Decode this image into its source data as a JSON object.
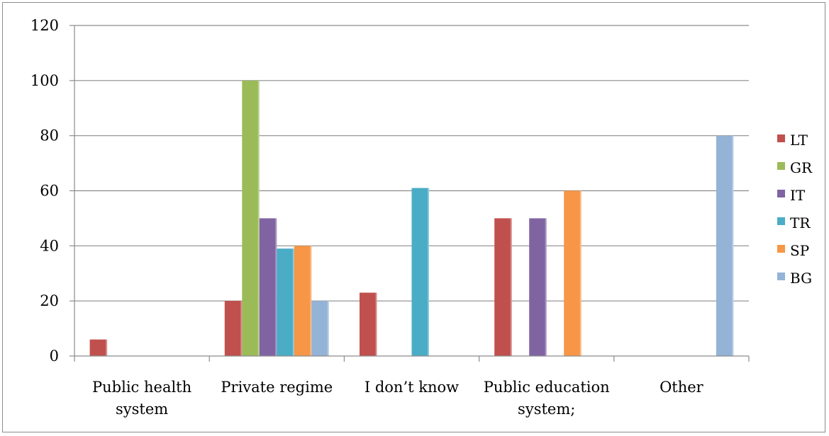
{
  "chart_data": {
    "type": "bar",
    "categories": [
      [
        "Public health",
        "system"
      ],
      [
        "Private regime"
      ],
      [
        "I don’t know"
      ],
      [
        "Public education",
        "system;"
      ],
      [
        "Other"
      ]
    ],
    "series": [
      {
        "name": "LT",
        "color": "#c0504d",
        "values": [
          6,
          20,
          23,
          50,
          0
        ]
      },
      {
        "name": "GR",
        "color": "#9bbb59",
        "values": [
          0,
          100,
          0,
          0,
          0
        ]
      },
      {
        "name": "IT",
        "color": "#8064a2",
        "values": [
          0,
          50,
          0,
          50,
          0
        ]
      },
      {
        "name": "TR",
        "color": "#4bacc6",
        "values": [
          0,
          39,
          61,
          0,
          0
        ]
      },
      {
        "name": "SP",
        "color": "#f79646",
        "values": [
          0,
          40,
          0,
          60,
          0
        ]
      },
      {
        "name": "BG",
        "color": "#95b3d7",
        "values": [
          0,
          20,
          0,
          0,
          80
        ]
      }
    ],
    "ylim": [
      0,
      120
    ],
    "yticks": [
      0,
      20,
      40,
      60,
      80,
      100,
      120
    ],
    "grid": true,
    "legend": "right",
    "title": "",
    "xlabel": "",
    "ylabel": ""
  }
}
